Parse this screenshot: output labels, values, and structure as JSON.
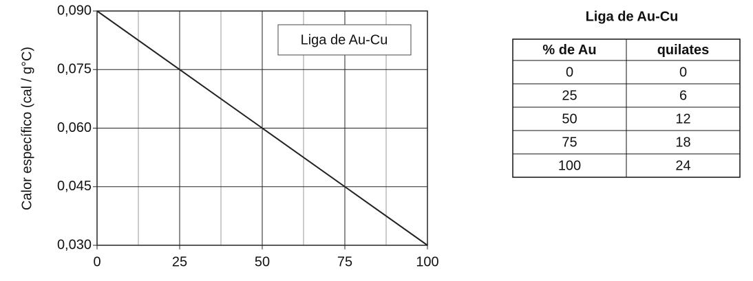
{
  "chart_data": {
    "type": "line",
    "y_label": "Calor específico (cal / g°C)",
    "x": [
      0,
      100
    ],
    "series": [
      {
        "name": "Liga de Au-Cu",
        "color": "#222222",
        "values": [
          0.09,
          0.03
        ]
      }
    ],
    "xlim": [
      0,
      100
    ],
    "xticks": [
      0,
      25,
      50,
      75,
      100
    ],
    "x_minor_grid": [
      12.5,
      37.5,
      62.5,
      87.5
    ],
    "ylim": [
      0.03,
      0.09
    ],
    "yticks": [
      {
        "value": 0.03,
        "label": "0,030"
      },
      {
        "value": 0.045,
        "label": "0,045"
      },
      {
        "value": 0.06,
        "label": "0,060"
      },
      {
        "value": 0.075,
        "label": "0,075"
      },
      {
        "value": 0.09,
        "label": "0,090"
      }
    ],
    "grid": true,
    "legend": "upper right"
  },
  "table": {
    "title": "Liga de Au-Cu",
    "header": [
      "% de Au",
      "quilates"
    ],
    "rows": [
      [
        0,
        0
      ],
      [
        25,
        6
      ],
      [
        50,
        12
      ],
      [
        75,
        18
      ],
      [
        100,
        24
      ]
    ]
  }
}
